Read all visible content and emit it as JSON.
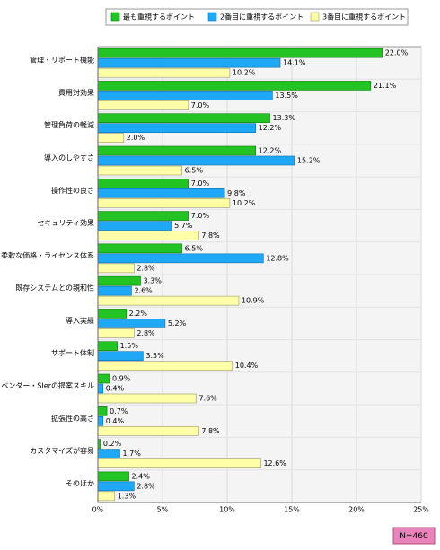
{
  "chart_data": {
    "type": "bar",
    "orientation": "horizontal",
    "categories": [
      "管理・リポート機能",
      "費用対効果",
      "管理負荷の軽減",
      "導入のしやすさ",
      "操作性の良さ",
      "セキュリティ効果",
      "柔軟な価格・ライセンス体系",
      "既存システムとの親和性",
      "導入実績",
      "サポート体制",
      "ベンダー・SIerの提案スキル",
      "拡張性の高さ",
      "カスタマイズが容易",
      "そのほか"
    ],
    "series": [
      {
        "name": "最も重視するポイント",
        "color": "#22c322",
        "values": [
          22.0,
          21.1,
          13.3,
          12.2,
          7.0,
          7.0,
          6.5,
          3.3,
          2.2,
          1.5,
          0.9,
          0.7,
          0.2,
          2.4
        ],
        "value_labels": [
          "22.0%",
          "21.1%",
          "13.3%",
          "12.2%",
          "7.0%",
          "7.0%",
          "6.5%",
          "3.3%",
          "2.2%",
          "1.5%",
          "0.9%",
          "0.7%",
          "0.2%",
          "2.4%"
        ]
      },
      {
        "name": "2番目に重視するポイント",
        "color": "#1ea8f5",
        "values": [
          14.1,
          13.5,
          12.2,
          15.2,
          9.8,
          5.7,
          12.8,
          2.6,
          5.2,
          3.5,
          0.4,
          0.4,
          1.7,
          2.8
        ],
        "value_labels": [
          "14.1%",
          "13.5%",
          "12.2%",
          "15.2%",
          "9.8%",
          "5.7%",
          "12.8%",
          "2.6%",
          "5.2%",
          "3.5%",
          "0.4%",
          "0.4%",
          "1.7%",
          "2.8%"
        ]
      },
      {
        "name": "3番目に重視するポイント",
        "color": "#ffffa8",
        "values": [
          10.2,
          7.0,
          2.0,
          6.5,
          10.2,
          7.8,
          2.8,
          10.9,
          2.8,
          10.4,
          7.6,
          7.8,
          12.6,
          1.3
        ],
        "value_labels": [
          "10.2%",
          "7.0%",
          "2.0%",
          "6.5%",
          "10.2%",
          "7.8%",
          "2.8%",
          "10.9%",
          "2.8%",
          "10.4%",
          "7.6%",
          "7.8%",
          "12.6%",
          "1.3%"
        ]
      }
    ],
    "xlim": [
      0,
      25
    ],
    "xticks": [
      {
        "value": 0,
        "label": "0%"
      },
      {
        "value": 5,
        "label": "5%"
      },
      {
        "value": 10,
        "label": "10%"
      },
      {
        "value": 15,
        "label": "15%"
      },
      {
        "value": 20,
        "label": "20%"
      },
      {
        "value": 25,
        "label": "25%"
      }
    ],
    "grid": true,
    "legend": "top",
    "annotation": "N=460"
  }
}
